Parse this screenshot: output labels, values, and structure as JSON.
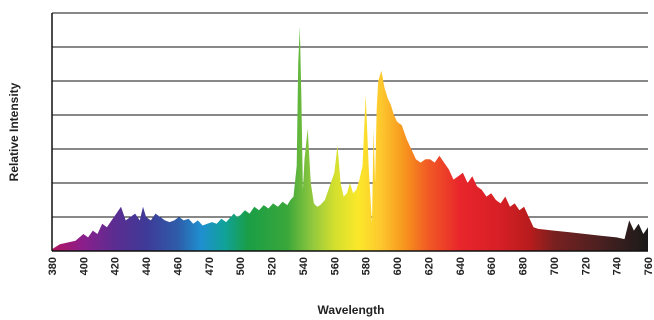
{
  "chart_data": {
    "type": "area",
    "title": "",
    "xlabel": "Wavelength",
    "ylabel": "Relative Intensity",
    "xlim": [
      380,
      760
    ],
    "ylim": [
      0,
      7
    ],
    "y_gridlines": [
      1,
      2,
      3,
      4,
      5,
      6,
      7
    ],
    "y_tick_labels_shown": false,
    "x_tick_labels": [
      "380",
      "400",
      "420",
      "440",
      "460",
      "470",
      "500",
      "520",
      "540",
      "560",
      "580",
      "600",
      "620",
      "640",
      "660",
      "680",
      "700",
      "720",
      "740",
      "760"
    ],
    "fill": "visible-spectrum gradient (violet through red, dark beyond 700 nm)",
    "x": [
      380,
      385,
      390,
      395,
      400,
      403,
      406,
      409,
      412,
      415,
      418,
      421,
      424,
      427,
      430,
      433,
      436,
      438,
      440,
      443,
      446,
      449,
      452,
      455,
      458,
      461,
      464,
      467,
      470,
      473,
      476,
      479,
      482,
      485,
      488,
      491,
      494,
      496,
      498,
      500,
      503,
      506,
      509,
      512,
      515,
      518,
      521,
      524,
      527,
      530,
      532,
      534,
      536,
      537,
      538,
      539,
      540,
      541,
      543,
      545,
      547,
      549,
      551,
      554,
      557,
      560,
      562,
      564,
      566,
      568,
      570,
      572,
      574,
      576,
      578,
      580,
      582,
      584,
      585,
      586,
      587,
      588,
      590,
      592,
      594,
      596,
      598,
      600,
      603,
      606,
      609,
      612,
      615,
      618,
      621,
      624,
      627,
      630,
      633,
      636,
      639,
      642,
      645,
      648,
      651,
      654,
      657,
      660,
      663,
      666,
      669,
      672,
      675,
      678,
      681,
      684,
      687,
      690,
      700,
      710,
      720,
      730,
      740,
      745,
      748,
      751,
      754,
      757,
      760
    ],
    "values": [
      0.05,
      0.2,
      0.25,
      0.3,
      0.5,
      0.4,
      0.6,
      0.5,
      0.8,
      0.7,
      0.9,
      1.1,
      1.3,
      0.9,
      1.0,
      1.1,
      0.9,
      1.3,
      1.0,
      0.9,
      1.1,
      1.0,
      0.9,
      0.85,
      0.9,
      1.0,
      0.9,
      0.95,
      0.8,
      0.9,
      0.75,
      0.8,
      0.85,
      0.8,
      0.95,
      0.85,
      1.0,
      1.1,
      1.0,
      1.05,
      1.2,
      1.1,
      1.3,
      1.2,
      1.35,
      1.25,
      1.4,
      1.3,
      1.45,
      1.35,
      1.5,
      1.6,
      2.5,
      5.5,
      6.6,
      4.5,
      1.8,
      2.7,
      3.6,
      2.0,
      1.4,
      1.3,
      1.35,
      1.5,
      1.9,
      2.3,
      3.1,
      2.0,
      1.6,
      1.7,
      2.0,
      1.7,
      1.8,
      2.1,
      2.5,
      4.6,
      2.4,
      0.8,
      3.6,
      2.0,
      4.2,
      5.0,
      5.3,
      4.8,
      4.5,
      4.3,
      4.0,
      3.8,
      3.7,
      3.3,
      3.0,
      2.7,
      2.6,
      2.7,
      2.7,
      2.6,
      2.8,
      2.6,
      2.4,
      2.1,
      2.2,
      2.3,
      2.0,
      2.2,
      1.9,
      1.8,
      1.6,
      1.7,
      1.5,
      1.4,
      1.6,
      1.3,
      1.4,
      1.2,
      1.3,
      1.0,
      0.7,
      0.65,
      0.6,
      0.55,
      0.5,
      0.45,
      0.4,
      0.35,
      0.9,
      0.6,
      0.8,
      0.5,
      0.7
    ],
    "grid": true,
    "legend": "none"
  }
}
